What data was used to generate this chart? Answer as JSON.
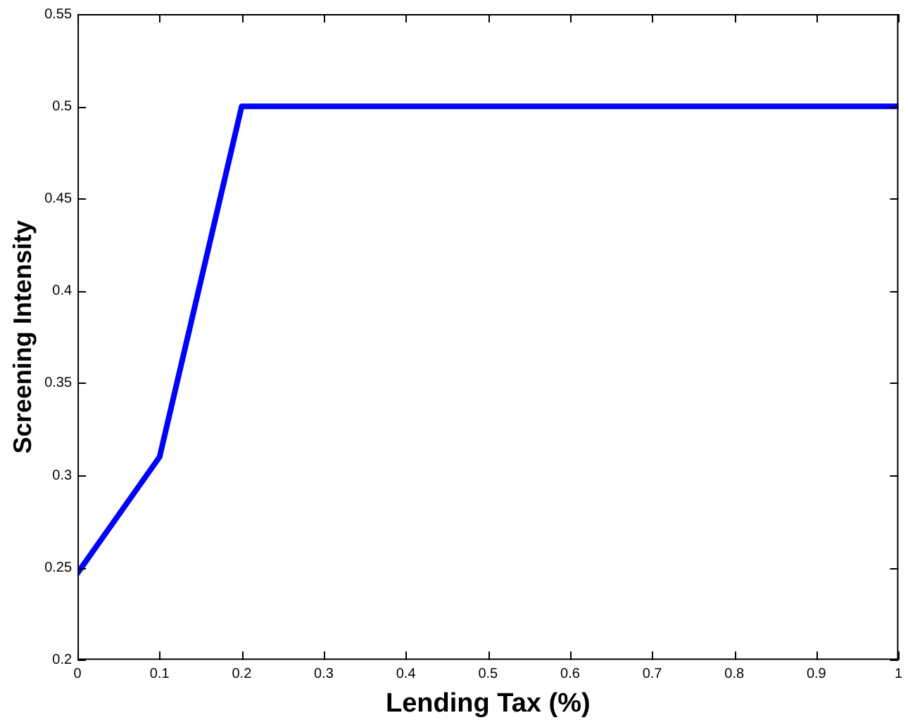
{
  "chart_data": {
    "type": "line",
    "xlabel": "Lending Tax (%)",
    "ylabel": "Screening Intensity",
    "x": [
      0,
      0.1,
      0.2,
      1
    ],
    "series": [
      {
        "color": "#0000ff",
        "values": [
          0.247,
          0.31,
          0.5,
          0.5
        ]
      }
    ],
    "xlim": [
      0,
      1
    ],
    "xticks": [
      0,
      0.1,
      0.2,
      0.3,
      0.4,
      0.5,
      0.6,
      0.7,
      0.8,
      0.9,
      1
    ],
    "ylim": [
      0.2,
      0.55
    ],
    "yticks": [
      0.2,
      0.25,
      0.3,
      0.35,
      0.4,
      0.45,
      0.5,
      0.55
    ],
    "grid": false,
    "legend": false,
    "marker": "none",
    "line_style": "solid"
  }
}
